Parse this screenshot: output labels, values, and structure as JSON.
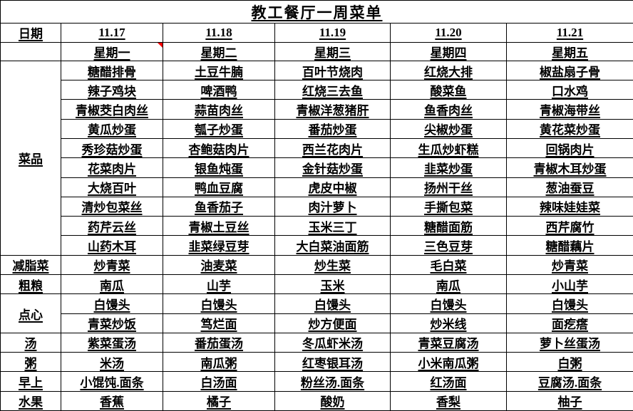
{
  "title": "教工餐厅一周菜单",
  "header": {
    "date_label": "日期",
    "dates": [
      "11.17",
      "11.18",
      "11.19",
      "11.20",
      "11.21"
    ],
    "weekdays": [
      "星期一",
      "星期二",
      "星期三",
      "星期四",
      "星期五"
    ],
    "comment_marker": "red-corner-triangle"
  },
  "sections": [
    {
      "label": "菜品",
      "rows": [
        [
          "糖醋排骨",
          "土豆牛腩",
          "百叶节烧肉",
          "红烧大排",
          "椒盐扇子骨"
        ],
        [
          "辣子鸡块",
          "啤酒鸭",
          "红烧三去鱼",
          "酸菜鱼",
          "口水鸡"
        ],
        [
          "青椒茭白肉丝",
          "蒜苗肉丝",
          "青椒洋葱猪肝",
          "鱼香肉丝",
          "青椒海带丝"
        ],
        [
          "黄瓜炒蛋",
          "瓠子炒蛋",
          "番茄炒蛋",
          "尖椒炒蛋",
          "黄花菜炒蛋"
        ],
        [
          "秀珍菇炒蛋",
          "杏鲍菇肉片",
          "西兰花肉片",
          "生瓜炒虾糕",
          "回锅肉片"
        ],
        [
          "花菜肉片",
          "银鱼炖蛋",
          "金针菇炒蛋",
          "韭菜炒蛋",
          "青椒木耳炒蛋"
        ],
        [
          "大烧百叶",
          "鸭血豆腐",
          "虎皮中椒",
          "扬州干丝",
          "葱油蚕豆"
        ],
        [
          "清炒包菜丝",
          "鱼香茄子",
          "肉汁萝卜",
          "手撕包菜",
          "辣味娃娃菜"
        ],
        [
          "药芹云丝",
          "青椒土豆丝",
          "玉米三丁",
          "糖醋面筋",
          "西芹腐竹"
        ],
        [
          "山药木耳",
          "韭菜绿豆芽",
          "大白菜油面筋",
          "三色豆芽",
          "糖醋藕片"
        ]
      ]
    },
    {
      "label": "减脂菜",
      "rows": [
        [
          "炒青菜",
          "油麦菜",
          "炒生菜",
          "毛白菜",
          "炒青菜"
        ]
      ]
    },
    {
      "label": "粗粮",
      "rows": [
        [
          "南瓜",
          "山芋",
          "玉米",
          "南瓜",
          "小山芋"
        ]
      ]
    },
    {
      "label": "点心",
      "rows": [
        [
          "白馒头",
          "白馒头",
          "白馒头",
          "白馒头",
          "白馒头"
        ],
        [
          "青菜炒饭",
          "笃烂面",
          "炒方便面",
          "炒米线",
          "面疙瘩"
        ]
      ]
    },
    {
      "label": "汤",
      "rows": [
        [
          "紫菜蛋汤",
          "番茄蛋汤",
          "冬瓜虾米汤",
          "青菜豆腐汤",
          "萝卜丝蛋汤"
        ]
      ]
    },
    {
      "label": "粥",
      "rows": [
        [
          "米汤",
          "南瓜粥",
          "红枣银耳汤",
          "小米南瓜粥",
          "白粥"
        ]
      ]
    },
    {
      "label": "早上",
      "rows": [
        [
          "小馄饨.面条",
          "白汤面",
          "粉丝汤.面条",
          "红汤面",
          "豆腐汤.面条"
        ]
      ]
    },
    {
      "label": "水果",
      "rows": [
        [
          "香蕉",
          "橘子",
          "酸奶",
          "香梨",
          "柚子"
        ]
      ]
    }
  ],
  "colors": {
    "border": "#000000",
    "background": "#ffffff",
    "text": "#000000",
    "comment_marker": "#ff0000"
  }
}
